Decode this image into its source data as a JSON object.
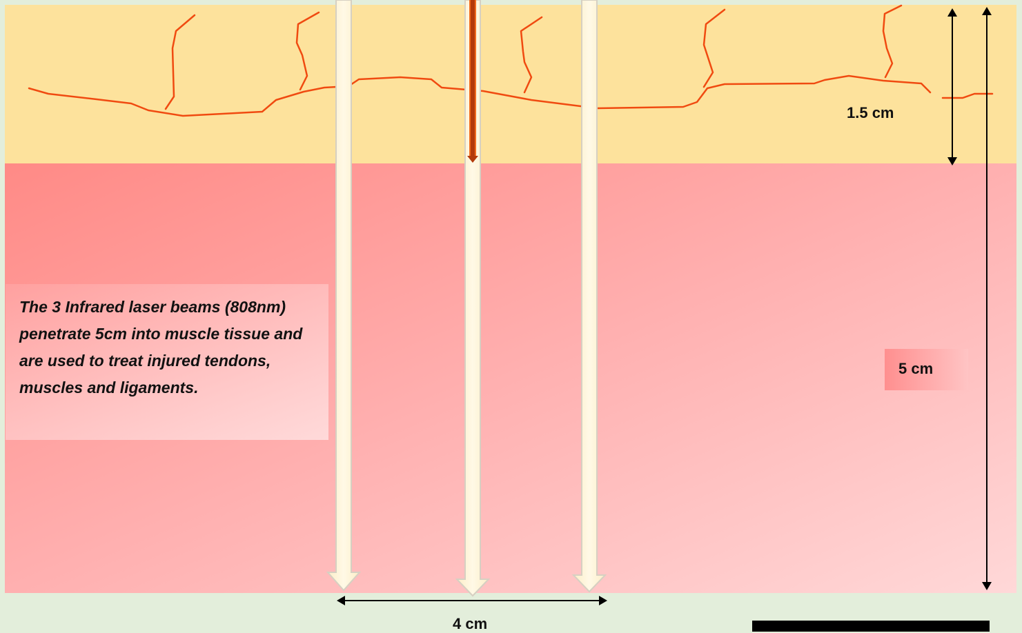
{
  "diagram": {
    "description": "The 3 Infrared laser beams (808nm) penetrate 5cm into muscle tissue and are used to treat injured tendons, muscles and ligaments.",
    "labels": {
      "skin_depth": "1.5 cm",
      "muscle_depth": "5 cm",
      "beam_spacing": "4 cm"
    },
    "colors": {
      "skin_layer": "#fde29c",
      "muscle_layer": "#ff9a96",
      "muscle_layer_light": "#ffd6d6",
      "beam_fill": "#fef3d6",
      "beam_stroke": "#d8d2c4",
      "vessel": "#f04a10",
      "center_arrow": "#c03a08",
      "background": "#e3eedb"
    }
  }
}
